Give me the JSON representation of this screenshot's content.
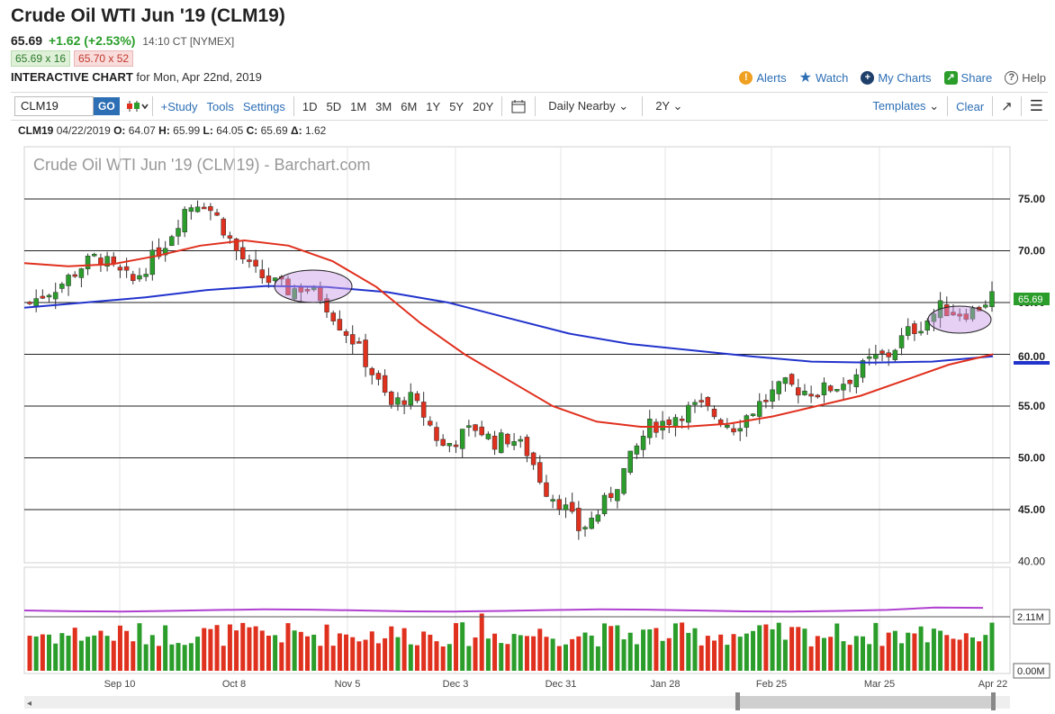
{
  "header": {
    "title": "Crude Oil WTI Jun '19 (CLM19)",
    "last": "65.69",
    "change": "+1.62 (+2.53%)",
    "time": "14:10 CT [NYMEX]",
    "bid": "65.69 x 16",
    "ask": "65.70 x 52",
    "interactive_label": "INTERACTIVE CHART",
    "interactive_for": "for Mon, Apr 22nd, 2019"
  },
  "top_actions": {
    "alerts": "Alerts",
    "watch": "Watch",
    "my_charts": "My Charts",
    "share": "Share",
    "help": "Help"
  },
  "toolbar": {
    "symbol": "CLM19",
    "go": "GO",
    "study": "+Study",
    "tools": "Tools",
    "settings": "Settings",
    "periods": [
      "1D",
      "5D",
      "1M",
      "3M",
      "6M",
      "1Y",
      "5Y",
      "20Y"
    ],
    "nearby": "Daily Nearby",
    "range": "2Y",
    "templates": "Templates",
    "clear": "Clear"
  },
  "ohlc_bar": {
    "symbol": "CLM19",
    "date": "04/22/2019",
    "open_label": "O:",
    "open": "64.07",
    "high_label": "H:",
    "high": "65.99",
    "low_label": "L:",
    "low": "64.05",
    "close_label": "C:",
    "close": "65.69",
    "delta_label": "Δ:",
    "delta": "1.62"
  },
  "colors": {
    "up": "#2a9d2a",
    "down": "#e0301e",
    "ma_fast": "#e0301e",
    "ma_slow": "#2233cc",
    "volume_ma": "#b040d0",
    "link": "#2d6fb5"
  },
  "chart_data": {
    "type": "candlestick",
    "title": "Crude Oil WTI Jun '19 (CLM19) - Barchart.com",
    "y_ticks": [
      "75.00",
      "70.00",
      "65.00",
      "60.00",
      "55.00",
      "50.00",
      "45.00",
      "40.00"
    ],
    "ylim": [
      40,
      80
    ],
    "x_ticks": [
      "Sep 10",
      "Oct 8",
      "Nov 5",
      "Dec 3",
      "Dec 31",
      "Jan 28",
      "Feb 25",
      "Mar 25",
      "Apr 22"
    ],
    "last_price_tag": "65.69",
    "ma_fast_tag": "60.00",
    "volume_ticks": [
      "2.11M",
      "0.00M"
    ],
    "close_path": [
      65,
      66,
      67,
      68.5,
      69.5,
      68,
      67,
      69,
      71,
      74,
      75,
      73,
      70,
      68,
      67,
      66.2,
      66.5,
      65.5,
      63,
      61,
      58,
      55,
      56,
      54,
      51,
      52,
      53,
      51.5,
      52,
      50.5,
      47,
      45.5,
      43,
      44.5,
      47,
      50,
      53,
      53.5,
      54.5,
      55,
      54,
      53,
      54.5,
      56,
      57,
      56.5,
      56.5,
      57,
      58,
      59.5,
      60,
      62,
      63,
      64.5,
      64,
      64.2,
      65.7
    ],
    "ma50_path": [
      68.8,
      68.5,
      68.7,
      69.5,
      70.5,
      71,
      70.5,
      69,
      66.5,
      63,
      60,
      57.5,
      55,
      53.5,
      53,
      53,
      53.3,
      54,
      55,
      56,
      57.5,
      59,
      60
    ],
    "ma200_path": [
      64.5,
      65,
      65.5,
      66.2,
      66.6,
      66.5,
      66,
      65,
      63.5,
      62,
      61,
      60.4,
      59.8,
      59.3,
      59.2,
      59.3,
      59.8
    ]
  }
}
